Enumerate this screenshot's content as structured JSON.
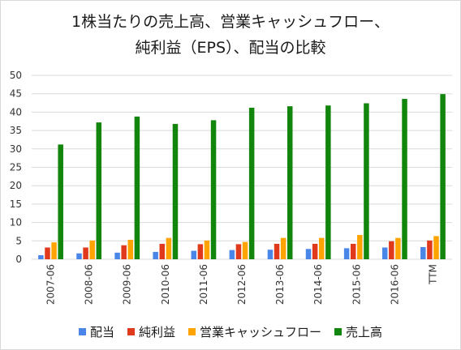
{
  "chart_data": {
    "type": "bar",
    "title_line1": "1株当たりの売上高、営業キャッシュフロー、",
    "title_line2": "純利益（EPS）、配当の比較",
    "categories": [
      "2007-06",
      "2008-06",
      "2009-06",
      "2010-06",
      "2011-06",
      "2012-06",
      "2013-06",
      "2014-06",
      "2015-06",
      "2016-06",
      "TTM"
    ],
    "ylim": [
      0,
      50
    ],
    "yticks": [
      0,
      5,
      10,
      15,
      20,
      25,
      30,
      35,
      40,
      45,
      50
    ],
    "grid": true,
    "legend_position": "bottom",
    "series": [
      {
        "name": "配当",
        "color": "#4a86e8",
        "values": [
          1.1,
          1.6,
          1.8,
          2.0,
          2.3,
          2.5,
          2.6,
          2.8,
          3.0,
          3.2,
          3.3
        ]
      },
      {
        "name": "純利益",
        "color": "#e0391b",
        "values": [
          3.2,
          3.2,
          3.8,
          4.2,
          4.1,
          4.1,
          4.2,
          4.2,
          4.2,
          4.9,
          5.1
        ]
      },
      {
        "name": "営業キャッシュフロー",
        "color": "#ffa300",
        "values": [
          4.6,
          5.1,
          5.3,
          5.8,
          5.1,
          4.7,
          5.8,
          5.8,
          6.6,
          5.8,
          6.3
        ]
      },
      {
        "name": "売上高",
        "color": "#11850c",
        "values": [
          31.2,
          37.2,
          38.8,
          36.8,
          37.8,
          41.2,
          41.6,
          41.8,
          42.4,
          43.6,
          44.9
        ]
      }
    ]
  }
}
